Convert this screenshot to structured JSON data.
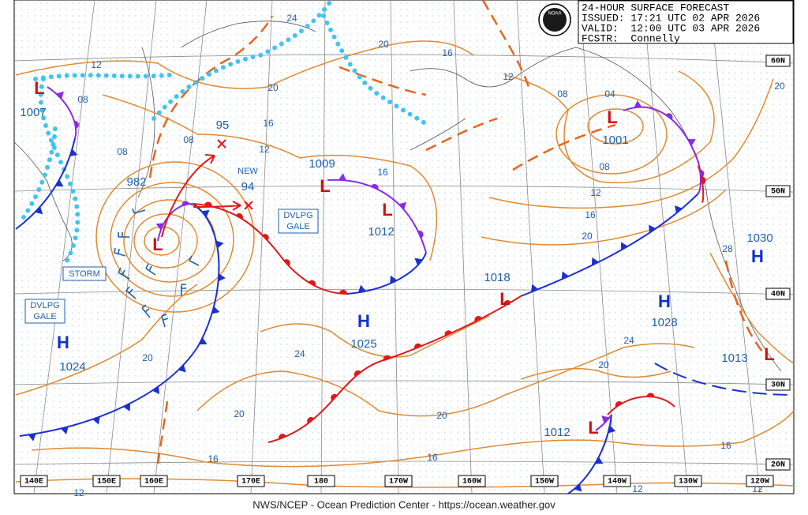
{
  "header": {
    "logo": "NOAA",
    "title": "24-HOUR SURFACE FORECAST",
    "issued": "ISSUED: 17:21 UTC 02 APR 2026",
    "valid": "VALID:  12:00 UTC 03 APR 2026",
    "forecaster": "FCSTR:  Connelly"
  },
  "longitude_labels": [
    "140E",
    "150E",
    "160E",
    "170E",
    "180",
    "170W",
    "160W",
    "150W",
    "140W",
    "130W",
    "120W"
  ],
  "latitude_labels": [
    "60N",
    "50N",
    "40N",
    "30N",
    "20N"
  ],
  "pressure_centers": [
    {
      "symbol": "L",
      "pressure": "1007"
    },
    {
      "symbol": "L",
      "pressure": "982"
    },
    {
      "symbol": "L",
      "pressure": "1009"
    },
    {
      "symbol": "L",
      "pressure": "1012"
    },
    {
      "symbol": "L",
      "pressure": "1018"
    },
    {
      "symbol": "L",
      "pressure": "1001"
    },
    {
      "symbol": "L",
      "pressure": "1012"
    },
    {
      "symbol": "L",
      "pressure": "1013"
    },
    {
      "symbol": "H",
      "pressure": "1024"
    },
    {
      "symbol": "H",
      "pressure": "1025"
    },
    {
      "symbol": "H",
      "pressure": "1028"
    },
    {
      "symbol": "H",
      "pressure": "1030"
    }
  ],
  "annotations": [
    "95",
    "NEW",
    "94",
    "STORM",
    [
      "DVLPG",
      "GALE"
    ],
    [
      "DVLPG",
      "GALE"
    ]
  ],
  "isobar_labels": [
    "12",
    "08",
    "08",
    "08",
    "12",
    "16",
    "20",
    "24",
    "20",
    "16",
    "12",
    "08",
    "04",
    "08",
    "12",
    "16",
    "20",
    "16",
    "28",
    "24",
    "20",
    "20",
    "24",
    "20",
    "20",
    "16",
    "16",
    "16",
    "12",
    "12",
    "12",
    "20"
  ],
  "footer": "NWS/NCEP - Ocean Prediction Center - https://ocean.weather.gov"
}
